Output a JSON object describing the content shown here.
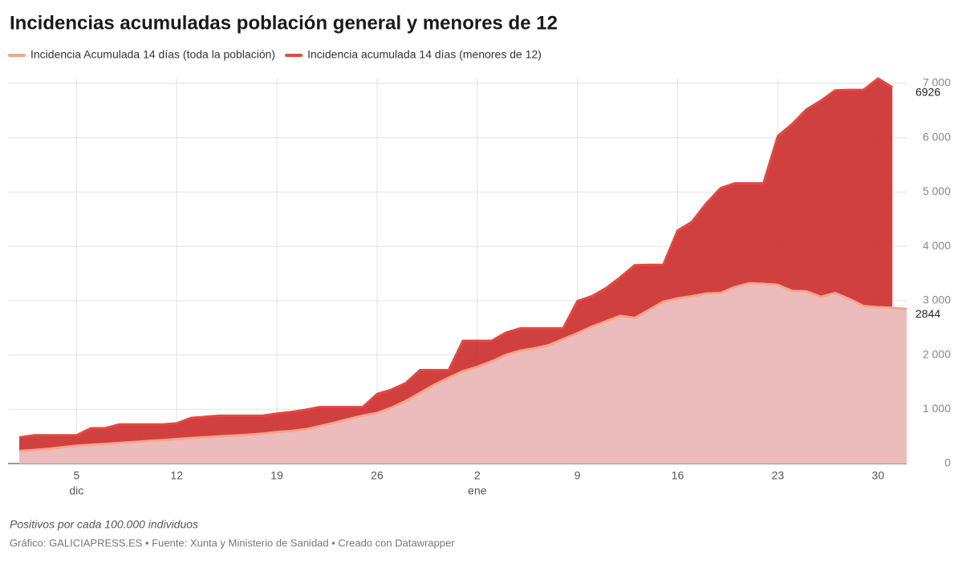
{
  "chart_data": {
    "type": "area",
    "title": "Incidencias acumuladas población general y menores de 12",
    "note": "Positivos por cada 100.000 individuos",
    "source": "Gráfico: GALICIAPRESS.ES • Fuente: Xunta y Ministerio de Sanidad • Creado con Datawrapper",
    "x": [
      "1 dic",
      "2 dic",
      "3 dic",
      "4 dic",
      "5 dic",
      "6 dic",
      "7 dic",
      "8 dic",
      "9 dic",
      "10 dic",
      "11 dic",
      "12 dic",
      "13 dic",
      "14 dic",
      "15 dic",
      "16 dic",
      "17 dic",
      "18 dic",
      "19 dic",
      "20 dic",
      "21 dic",
      "22 dic",
      "23 dic",
      "24 dic",
      "25 dic",
      "26 dic",
      "27 dic",
      "28 dic",
      "29 dic",
      "30 dic",
      "31 dic",
      "1 ene",
      "2 ene",
      "3 ene",
      "4 ene",
      "5 ene",
      "6 ene",
      "7 ene",
      "8 ene",
      "9 ene",
      "10 ene",
      "11 ene",
      "12 ene",
      "13 ene",
      "14 ene",
      "15 ene",
      "16 ene",
      "17 ene",
      "18 ene",
      "19 ene",
      "20 ene",
      "21 ene",
      "22 ene",
      "23 ene",
      "24 ene",
      "25 ene",
      "26 ene",
      "27 ene",
      "28 ene",
      "29 ene",
      "30 ene",
      "31 ene",
      "1 feb"
    ],
    "series": [
      {
        "name": "Incidencia acumulada 14 días (menores de 12)",
        "color": "#e5483f",
        "fill": "#cc2b2b",
        "values": [
          480,
          520,
          520,
          520,
          520,
          650,
          650,
          720,
          720,
          720,
          720,
          740,
          840,
          860,
          880,
          880,
          880,
          880,
          920,
          950,
          990,
          1040,
          1040,
          1040,
          1040,
          1280,
          1360,
          1480,
          1720,
          1720,
          1720,
          2260,
          2260,
          2260,
          2410,
          2490,
          2490,
          2490,
          2490,
          2990,
          3080,
          3230,
          3430,
          3650,
          3660,
          3660,
          4290,
          4450,
          4790,
          5070,
          5160,
          5160,
          5160,
          6030,
          6250,
          6520,
          6680,
          6870,
          6880,
          6880,
          7090,
          6926,
          null
        ]
      },
      {
        "name": "Incidencia Acumulada 14 días (toda la población)",
        "color": "#f4a58a",
        "fill": "#ecbcbc",
        "values": [
          230,
          250,
          270,
          300,
          330,
          345,
          360,
          380,
          395,
          415,
          430,
          450,
          470,
          485,
          500,
          515,
          530,
          550,
          580,
          600,
          630,
          690,
          750,
          820,
          880,
          930,
          1030,
          1150,
          1300,
          1450,
          1580,
          1700,
          1780,
          1880,
          2000,
          2080,
          2120,
          2180,
          2290,
          2400,
          2520,
          2620,
          2720,
          2680,
          2830,
          2980,
          3040,
          3080,
          3130,
          3140,
          3250,
          3320,
          3310,
          3290,
          3180,
          3170,
          3070,
          3140,
          3030,
          2900,
          2880,
          2870,
          2844
        ]
      }
    ],
    "legend_order": [
      1,
      0
    ],
    "xticks": [
      {
        "value": "5 dic",
        "label": "5",
        "sublabel": "dic"
      },
      {
        "value": "12 dic",
        "label": "12"
      },
      {
        "value": "19 dic",
        "label": "19"
      },
      {
        "value": "26 dic",
        "label": "26"
      },
      {
        "value": "2 ene",
        "label": "2",
        "sublabel": "ene"
      },
      {
        "value": "9 ene",
        "label": "9"
      },
      {
        "value": "16 ene",
        "label": "16"
      },
      {
        "value": "23 ene",
        "label": "23"
      },
      {
        "value": "30 ene",
        "label": "30"
      }
    ],
    "ylim": [
      0,
      7000
    ],
    "yticks": [
      0,
      {
        "value": 1000,
        "label": "1 000"
      },
      {
        "value": 2000,
        "label": "2 000"
      },
      {
        "value": 3000,
        "label": "3 000"
      },
      {
        "value": 4000,
        "label": "4 000"
      },
      {
        "value": 5000,
        "label": "5 000"
      },
      {
        "value": 6000,
        "label": "6 000"
      },
      {
        "value": 7000,
        "label": "7 000"
      }
    ],
    "grid": true
  }
}
